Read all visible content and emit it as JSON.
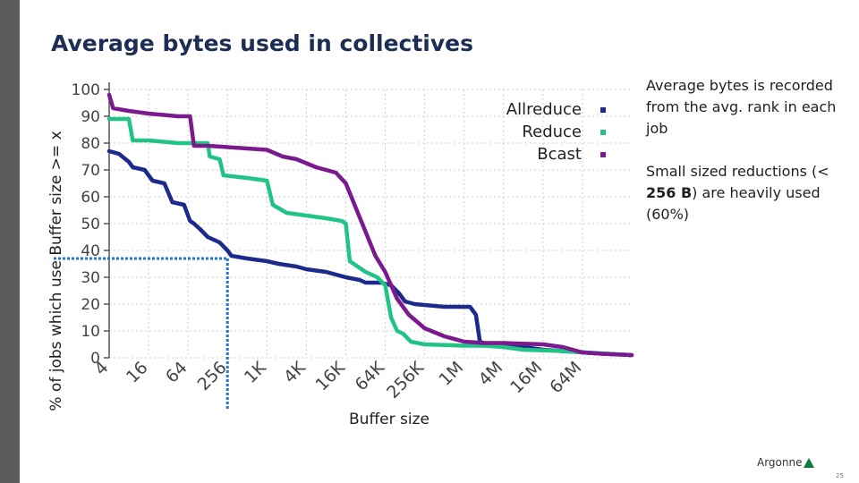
{
  "slide": {
    "title": "Average bytes used in collectives",
    "note1": "Average bytes is recorded from the avg. rank in each job",
    "note2_pre": "Small sized reductions   (< ",
    "note2_bold": "256 B",
    "note2_post": ") are heavily used (60%)",
    "logo_text": "Argonne",
    "page_number": "25"
  },
  "colors": {
    "allreduce": "#1c2a8c",
    "reduce": "#22c486",
    "bcast": "#7b1a8f",
    "marker": "#2277cc",
    "grid": "#cfcfcf",
    "axis": "#555555"
  },
  "chart_data": {
    "type": "line",
    "title": "",
    "xlabel": "Buffer size",
    "ylabel": "% of jobs which use Buffer size >= x",
    "xscale": "log2",
    "x_ticks": [
      "4",
      "16",
      "64",
      "256",
      "1K",
      "4K",
      "16K",
      "64K",
      "256K",
      "1M",
      "4M",
      "16M",
      "64M"
    ],
    "x_tick_exponents": [
      2,
      4,
      6,
      8,
      10,
      12,
      14,
      16,
      18,
      20,
      22,
      24,
      26
    ],
    "xlim_exponent": [
      2,
      28.5
    ],
    "y_ticks": [
      "0",
      "10",
      "20",
      "30",
      "40",
      "50",
      "60",
      "70",
      "80",
      "90",
      "100"
    ],
    "ylim": [
      0,
      100
    ],
    "grid": true,
    "legend_position": "top-right",
    "series": [
      {
        "name": "Allreduce",
        "color_key": "allreduce",
        "points": [
          [
            2,
            77
          ],
          [
            2.5,
            76
          ],
          [
            3,
            73
          ],
          [
            3.2,
            71
          ],
          [
            3.8,
            70
          ],
          [
            4.2,
            66
          ],
          [
            4.8,
            65
          ],
          [
            5.2,
            58
          ],
          [
            5.8,
            57
          ],
          [
            6.1,
            51
          ],
          [
            6.3,
            50
          ],
          [
            6.6,
            48
          ],
          [
            7,
            45
          ],
          [
            7.6,
            43
          ],
          [
            8,
            40
          ],
          [
            8.2,
            38
          ],
          [
            9,
            37
          ],
          [
            10,
            36
          ],
          [
            10.6,
            35
          ],
          [
            11.5,
            34
          ],
          [
            12,
            33
          ],
          [
            13,
            32
          ],
          [
            14,
            30
          ],
          [
            14.7,
            29
          ],
          [
            15,
            28
          ],
          [
            15.8,
            28
          ],
          [
            16.3,
            27
          ],
          [
            16.7,
            24
          ],
          [
            17,
            21
          ],
          [
            17.5,
            20
          ],
          [
            19,
            19
          ],
          [
            20.3,
            19
          ],
          [
            20.6,
            16
          ],
          [
            20.8,
            6
          ],
          [
            21,
            5.5
          ],
          [
            22,
            5
          ],
          [
            23,
            4
          ],
          [
            24,
            3
          ],
          [
            25,
            2.5
          ],
          [
            26,
            2
          ],
          [
            27,
            1.5
          ],
          [
            28.5,
            1
          ]
        ]
      },
      {
        "name": "Reduce",
        "color_key": "reduce",
        "points": [
          [
            2,
            89
          ],
          [
            3,
            89
          ],
          [
            3.2,
            81
          ],
          [
            4,
            81
          ],
          [
            5.5,
            80
          ],
          [
            7,
            80
          ],
          [
            7.1,
            75
          ],
          [
            7.6,
            74
          ],
          [
            7.8,
            68
          ],
          [
            9,
            67
          ],
          [
            10,
            66
          ],
          [
            10.3,
            57
          ],
          [
            11,
            54
          ],
          [
            13,
            52
          ],
          [
            13.8,
            51
          ],
          [
            14,
            50
          ],
          [
            14.2,
            36
          ],
          [
            15,
            32
          ],
          [
            15.6,
            30
          ],
          [
            16,
            27
          ],
          [
            16.3,
            15
          ],
          [
            16.6,
            10
          ],
          [
            16.9,
            9
          ],
          [
            17.3,
            6
          ],
          [
            18,
            5
          ],
          [
            20,
            4.5
          ],
          [
            21,
            4.5
          ],
          [
            22,
            4
          ],
          [
            23,
            3
          ],
          [
            25,
            2.5
          ],
          [
            28.5,
            1
          ]
        ]
      },
      {
        "name": "Bcast",
        "color_key": "bcast",
        "points": [
          [
            2,
            98
          ],
          [
            2.2,
            93
          ],
          [
            3,
            92
          ],
          [
            4,
            91
          ],
          [
            5.5,
            90
          ],
          [
            6.1,
            90
          ],
          [
            6.3,
            79
          ],
          [
            7,
            79
          ],
          [
            9,
            78
          ],
          [
            10,
            77.5
          ],
          [
            10.8,
            75
          ],
          [
            11.5,
            74
          ],
          [
            12.5,
            71
          ],
          [
            13.5,
            69
          ],
          [
            14,
            65
          ],
          [
            14.5,
            56
          ],
          [
            15,
            47
          ],
          [
            15.5,
            38
          ],
          [
            16,
            32
          ],
          [
            16.6,
            22
          ],
          [
            17.2,
            16
          ],
          [
            18,
            11
          ],
          [
            19,
            8
          ],
          [
            20,
            6
          ],
          [
            21,
            5.5
          ],
          [
            22,
            5.5
          ],
          [
            24,
            5
          ],
          [
            25,
            4
          ],
          [
            26,
            2
          ],
          [
            27,
            1.5
          ],
          [
            28.5,
            1
          ]
        ]
      }
    ],
    "highlight": {
      "x_exponent": 8,
      "y": 37
    }
  }
}
